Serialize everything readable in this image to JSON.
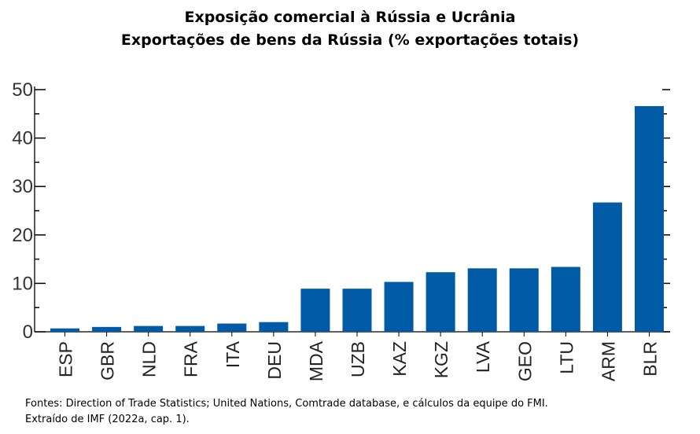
{
  "chart_data": {
    "type": "bar",
    "title": "Exposição comercial à Rússia e Ucrânia",
    "subtitle": "Exportações de bens da Rússia (% exportações totais)",
    "xlabel": "",
    "ylabel": "",
    "ylim": [
      0,
      50
    ],
    "yticks": [
      0,
      10,
      20,
      30,
      40,
      50
    ],
    "grid": false,
    "bar_color": "#005aa6",
    "categories": [
      "ESP",
      "GBR",
      "NLD",
      "FRA",
      "ITA",
      "DEU",
      "MDA",
      "UZB",
      "KAZ",
      "KGZ",
      "LVA",
      "GEO",
      "LTU",
      "ARM",
      "BLR"
    ],
    "values": [
      0.7,
      1.0,
      1.2,
      1.2,
      1.7,
      2.0,
      8.9,
      8.9,
      10.3,
      12.3,
      13.1,
      13.1,
      13.4,
      26.7,
      46.6
    ]
  },
  "source": {
    "line1": "Fontes: Direction of Trade Statistics; United Nations, Comtrade database, e cálculos da equipe do FMI.",
    "line2": "Extraído de IMF (2022a, cap. 1)."
  }
}
